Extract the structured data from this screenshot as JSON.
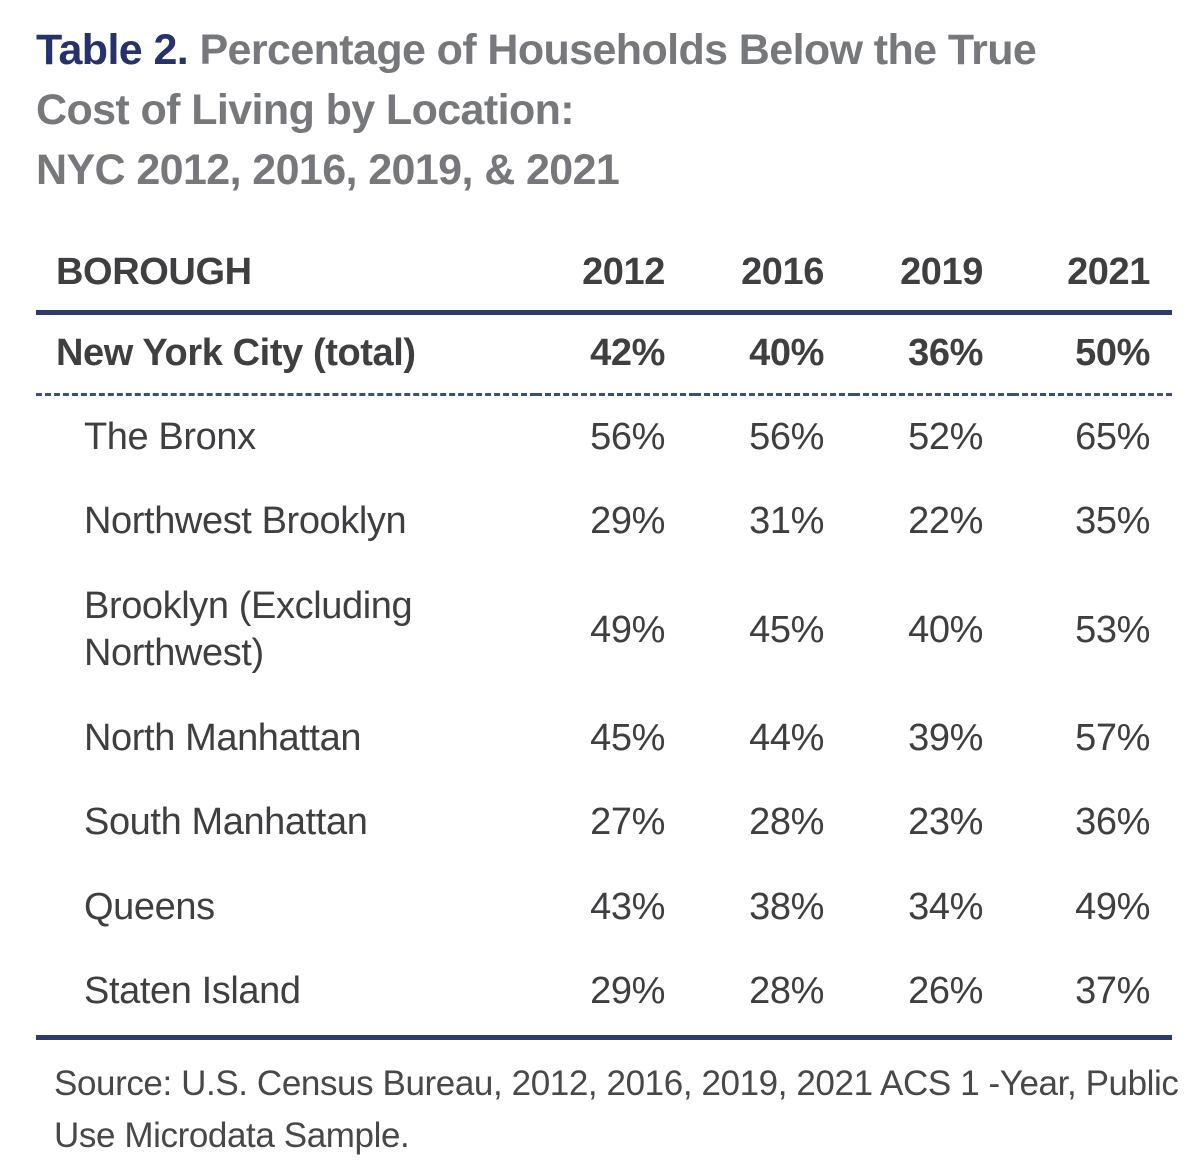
{
  "title": {
    "prefix": "Table 2.",
    "line1": " Percentage of Households Below the True",
    "line2": "Cost of Living by Location:",
    "line3": "NYC 2012, 2016, 2019, & 2021"
  },
  "table": {
    "columns": [
      "BOROUGH",
      "2012",
      "2016",
      "2019",
      "2021"
    ],
    "total_row": {
      "label": "New York City (total)",
      "values": [
        "42%",
        "40%",
        "36%",
        "50%"
      ]
    },
    "rows": [
      {
        "label": "The Bronx",
        "values": [
          "56%",
          "56%",
          "52%",
          "65%"
        ]
      },
      {
        "label": "Northwest Brooklyn",
        "values": [
          "29%",
          "31%",
          "22%",
          "35%"
        ]
      },
      {
        "label": "Brooklyn (Excluding Northwest)",
        "values": [
          "49%",
          "45%",
          "40%",
          "53%"
        ]
      },
      {
        "label": "North Manhattan",
        "values": [
          "45%",
          "44%",
          "39%",
          "57%"
        ]
      },
      {
        "label": "South Manhattan",
        "values": [
          "27%",
          "28%",
          "23%",
          "36%"
        ]
      },
      {
        "label": "Queens",
        "values": [
          "43%",
          "38%",
          "34%",
          "49%"
        ]
      },
      {
        "label": "Staten Island",
        "values": [
          "29%",
          "28%",
          "26%",
          "37%"
        ]
      }
    ]
  },
  "source": {
    "line1": "Source: U.S. Census Bureau, 2012, 2016, 2019, 2021 ACS 1 -Year, Public",
    "line2": "Use Microdata Sample."
  },
  "colors": {
    "accent_navy": "#25326b",
    "rule_navy": "#2c3b6b",
    "dashed_rule_navy": "#3d4d7d",
    "title_gray": "#77787b",
    "text_dark": "#3f3f41"
  },
  "chart_data": {
    "type": "table",
    "title": "Table 2. Percentage of Households Below the True Cost of Living by Location: NYC 2012, 2016, 2019, & 2021",
    "columns": [
      "BOROUGH",
      "2012",
      "2016",
      "2019",
      "2021"
    ],
    "unit": "percent of households below the true cost of living",
    "rows": [
      {
        "borough": "New York City (total)",
        "values_pct": [
          42,
          40,
          36,
          50
        ]
      },
      {
        "borough": "The Bronx",
        "values_pct": [
          56,
          56,
          52,
          65
        ]
      },
      {
        "borough": "Northwest Brooklyn",
        "values_pct": [
          29,
          31,
          22,
          35
        ]
      },
      {
        "borough": "Brooklyn (Excluding Northwest)",
        "values_pct": [
          49,
          45,
          40,
          53
        ]
      },
      {
        "borough": "North Manhattan",
        "values_pct": [
          45,
          44,
          39,
          57
        ]
      },
      {
        "borough": "South Manhattan",
        "values_pct": [
          27,
          28,
          23,
          36
        ]
      },
      {
        "borough": "Queens",
        "values_pct": [
          43,
          38,
          34,
          49
        ]
      },
      {
        "borough": "Staten Island",
        "values_pct": [
          29,
          28,
          26,
          37
        ]
      }
    ],
    "source": "Source: U.S. Census Bureau, 2012, 2016, 2019, 2021 ACS 1 -Year, Public Use Microdata Sample."
  }
}
